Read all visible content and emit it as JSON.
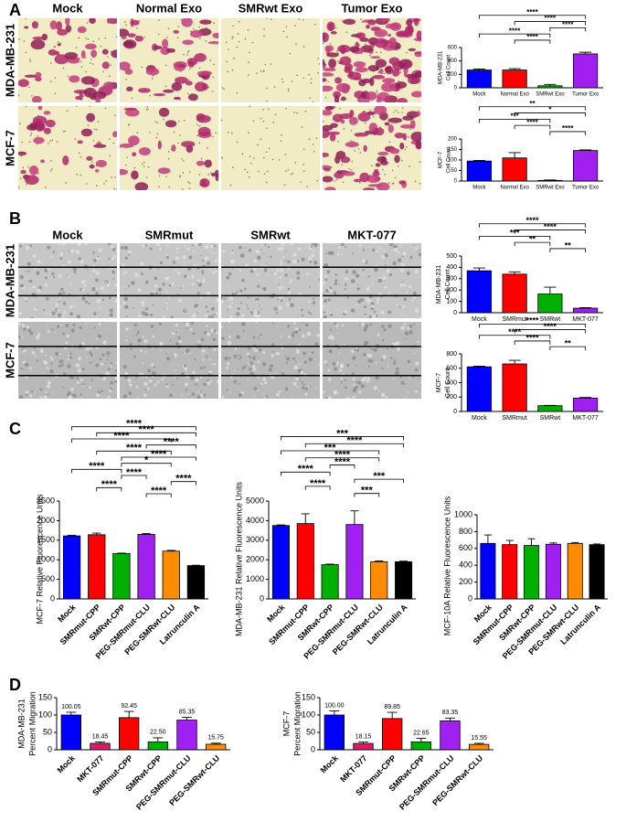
{
  "panel_letters": [
    "A",
    "B",
    "C",
    "D"
  ],
  "image_grids": [
    {
      "columns": [
        "Mock",
        "Normal Exo",
        "SMRwt Exo",
        "Tumor Exo"
      ],
      "rows": [
        "MDA-MB-231",
        "MCF-7"
      ]
    },
    {
      "columns": [
        "Mock",
        "SMRmut",
        "SMRwt",
        "MKT-077"
      ],
      "rows": [
        "MDA-MB-231",
        "MCF-7"
      ]
    }
  ],
  "chart_data": [
    {
      "type": "bar",
      "ylabel": [
        "MDA-MB-231",
        "Cell Count"
      ],
      "categories": [
        "Mock",
        "Normal Exo",
        "SMRwt Exo",
        "Tumor Exo"
      ],
      "values": [
        265,
        265,
        30,
        505
      ],
      "errors": [
        15,
        20,
        20,
        25
      ],
      "colors": [
        "#0000ff",
        "#ff0000",
        "#00b000",
        "#a020f0"
      ],
      "ylim": [
        0,
        600
      ],
      "yticks": [
        0,
        200,
        400,
        600
      ],
      "brackets": [
        {
          "pair": [
            0,
            3
          ],
          "label": "****"
        },
        {
          "pair": [
            1,
            3
          ],
          "label": "****"
        },
        {
          "pair": [
            2,
            3
          ],
          "label": "****"
        },
        {
          "pair": [
            0,
            2
          ],
          "label": "****"
        },
        {
          "pair": [
            1,
            2
          ],
          "label": "****"
        }
      ]
    },
    {
      "type": "bar",
      "ylabel": [
        "MCF-7",
        "Cell Count"
      ],
      "categories": [
        "Mock",
        "Normal Exo",
        "SMRwt Exo",
        "Tumor Exo"
      ],
      "values": [
        95,
        110,
        3,
        145
      ],
      "errors": [
        3,
        25,
        2,
        3
      ],
      "colors": [
        "#0000ff",
        "#ff0000",
        "#00b000",
        "#a020f0"
      ],
      "ylim": [
        0,
        200
      ],
      "yticks": [
        0,
        50,
        100,
        150,
        200
      ],
      "brackets": [
        {
          "pair": [
            0,
            3
          ],
          "label": "**"
        },
        {
          "pair": [
            1,
            3
          ],
          "label": "*"
        },
        {
          "pair": [
            0,
            2
          ],
          "label": "***"
        },
        {
          "pair": [
            1,
            2
          ],
          "label": "****"
        },
        {
          "pair": [
            2,
            3
          ],
          "label": "****"
        }
      ]
    },
    {
      "type": "bar",
      "ylabel": [
        "MDA-MB-231",
        "Cell Count"
      ],
      "categories": [
        "Mock",
        "SMRmut",
        "SMRwt",
        "MKT-077"
      ],
      "values": [
        370,
        340,
        165,
        40
      ],
      "errors": [
        25,
        20,
        60,
        5
      ],
      "colors": [
        "#0000ff",
        "#ff0000",
        "#00b000",
        "#a020f0"
      ],
      "ylim": [
        0,
        500
      ],
      "yticks": [
        0,
        100,
        200,
        300,
        400,
        500
      ],
      "brackets": [
        {
          "pair": [
            0,
            3
          ],
          "label": "****"
        },
        {
          "pair": [
            1,
            3
          ],
          "label": "****"
        },
        {
          "pair": [
            0,
            2
          ],
          "label": "***"
        },
        {
          "pair": [
            1,
            2
          ],
          "label": "**"
        },
        {
          "pair": [
            2,
            3
          ],
          "label": "**"
        }
      ]
    },
    {
      "type": "bar",
      "ylabel": [
        "MCF-7",
        "Cell Count"
      ],
      "categories": [
        "Mock",
        "SMRmut",
        "SMRwt",
        "MKT-077"
      ],
      "values": [
        620,
        660,
        80,
        185
      ],
      "errors": [
        10,
        50,
        5,
        10
      ],
      "colors": [
        "#0000ff",
        "#ff0000",
        "#00b000",
        "#a020f0"
      ],
      "ylim": [
        0,
        800
      ],
      "yticks": [
        0,
        200,
        400,
        600,
        800
      ],
      "brackets": [
        {
          "pair": [
            0,
            3
          ],
          "label": "****"
        },
        {
          "pair": [
            1,
            3
          ],
          "label": "****"
        },
        {
          "pair": [
            0,
            2
          ],
          "label": "****"
        },
        {
          "pair": [
            1,
            2
          ],
          "label": "****"
        },
        {
          "pair": [
            2,
            3
          ],
          "label": "**"
        }
      ]
    },
    {
      "type": "bar",
      "ylabel": "MCF-7 Relative Fluorescence Units",
      "categories": [
        "Mock",
        "SMRmut-CPP",
        "SMRwt-CPP",
        "PEG-SMRmut-CLU",
        "PEG-SMRwt-CLU",
        "Latrunculin A"
      ],
      "values": [
        1610,
        1640,
        1160,
        1650,
        1220,
        850
      ],
      "errors": [
        15,
        40,
        10,
        20,
        20,
        10
      ],
      "colors": [
        "#0000ff",
        "#ff0000",
        "#00b000",
        "#a020f0",
        "#ff8c00",
        "#000000"
      ],
      "ylim": [
        0,
        2500
      ],
      "yticks": [
        0,
        500,
        1000,
        1500,
        2000,
        2500
      ],
      "brackets": [
        {
          "pair": [
            0,
            5
          ],
          "label": "****"
        },
        {
          "pair": [
            1,
            5
          ],
          "label": "****"
        },
        {
          "pair": [
            0,
            4
          ],
          "label": "****"
        },
        {
          "pair": [
            3,
            5
          ],
          "label": "****"
        },
        {
          "pair": [
            1,
            4
          ],
          "label": "****"
        },
        {
          "pair": [
            2,
            5
          ],
          "label": "****"
        },
        {
          "pair": [
            2,
            4
          ],
          "label": "*"
        },
        {
          "pair": [
            0,
            2
          ],
          "label": "****"
        },
        {
          "pair": [
            2,
            3
          ],
          "label": "****"
        },
        {
          "pair": [
            4,
            5
          ],
          "label": "****"
        },
        {
          "pair": [
            1,
            2
          ],
          "label": "****"
        },
        {
          "pair": [
            3,
            4
          ],
          "label": "****"
        }
      ]
    },
    {
      "type": "bar",
      "ylabel": "MDA-MB-231 Relative Fluorescence Units",
      "categories": [
        "Mock",
        "SMRmut-CPP",
        "SMRwt-CPP",
        "PEG-SMRmut-CLU",
        "PEG-SMRwt-CLU",
        "Latrunculin A"
      ],
      "values": [
        3750,
        3850,
        1750,
        3800,
        1900,
        1900
      ],
      "errors": [
        30,
        500,
        30,
        700,
        40,
        30
      ],
      "colors": [
        "#0000ff",
        "#ff0000",
        "#00b000",
        "#a020f0",
        "#ff8c00",
        "#000000"
      ],
      "ylim": [
        0,
        5000
      ],
      "yticks": [
        0,
        1000,
        2000,
        3000,
        4000,
        5000
      ],
      "brackets": [
        {
          "pair": [
            0,
            5
          ],
          "label": "***"
        },
        {
          "pair": [
            1,
            5
          ],
          "label": "****"
        },
        {
          "pair": [
            0,
            4
          ],
          "label": "***"
        },
        {
          "pair": [
            1,
            4
          ],
          "label": "****"
        },
        {
          "pair": [
            2,
            3
          ],
          "label": "****"
        },
        {
          "pair": [
            0,
            2
          ],
          "label": "****"
        },
        {
          "pair": [
            3,
            5
          ],
          "label": "***"
        },
        {
          "pair": [
            1,
            2
          ],
          "label": "****"
        },
        {
          "pair": [
            3,
            4
          ],
          "label": "***"
        }
      ]
    },
    {
      "type": "bar",
      "ylabel": "MCF-10A Relative Fluorescence Units",
      "categories": [
        "Mock",
        "SMRmut-CPP",
        "SMRwt-CPP",
        "PEG-SMRmut-CLU",
        "PEG-SMRwt-CLU",
        "Latrunculin A"
      ],
      "values": [
        660,
        645,
        635,
        650,
        660,
        645
      ],
      "errors": [
        100,
        50,
        80,
        15,
        10,
        8
      ],
      "colors": [
        "#0000ff",
        "#ff0000",
        "#00b000",
        "#a020f0",
        "#ff8c00",
        "#000000"
      ],
      "ylim": [
        0,
        1000
      ],
      "yticks": [
        0,
        200,
        400,
        600,
        800,
        1000
      ]
    },
    {
      "type": "bar",
      "ylabel": [
        "MDA-MB-231",
        "Percent Migration"
      ],
      "categories": [
        "Mock",
        "MKT-077",
        "SMRmut-CPP",
        "SMRwt-CPP",
        "PEG-SMRmut-CLU",
        "PEG-SMRwt-CLU"
      ],
      "values": [
        100.05,
        18.45,
        92.45,
        22.5,
        85.35,
        15.75
      ],
      "value_labels": [
        "100.05",
        "18.45",
        "92.45",
        "22.50",
        "85.35",
        "15.75"
      ],
      "errors": [
        8,
        4,
        18,
        12,
        8,
        3
      ],
      "colors": [
        "#0000ff",
        "#e0186c",
        "#ff0000",
        "#00b000",
        "#a020f0",
        "#ff8c00"
      ],
      "ylim": [
        0,
        150
      ],
      "yticks": [
        0,
        50,
        100,
        150
      ]
    },
    {
      "type": "bar",
      "ylabel": [
        "MCF-7",
        "Percent Migration"
      ],
      "categories": [
        "Mock",
        "MKT-077",
        "SMRmut-CPP",
        "SMRwt-CPP",
        "PEG-SMRmut-CLU",
        "PEG-SMRwt-CLU"
      ],
      "values": [
        100.0,
        18.15,
        89.85,
        22.65,
        83.35,
        15.55
      ],
      "value_labels": [
        "100.00",
        "18.15",
        "89.85",
        "22.65",
        "83.35",
        "15.55"
      ],
      "errors": [
        12,
        4,
        18,
        10,
        8,
        3
      ],
      "colors": [
        "#0000ff",
        "#e0186c",
        "#ff0000",
        "#00b000",
        "#a020f0",
        "#ff8c00"
      ],
      "ylim": [
        0,
        150
      ],
      "yticks": [
        0,
        50,
        100,
        150
      ]
    }
  ]
}
